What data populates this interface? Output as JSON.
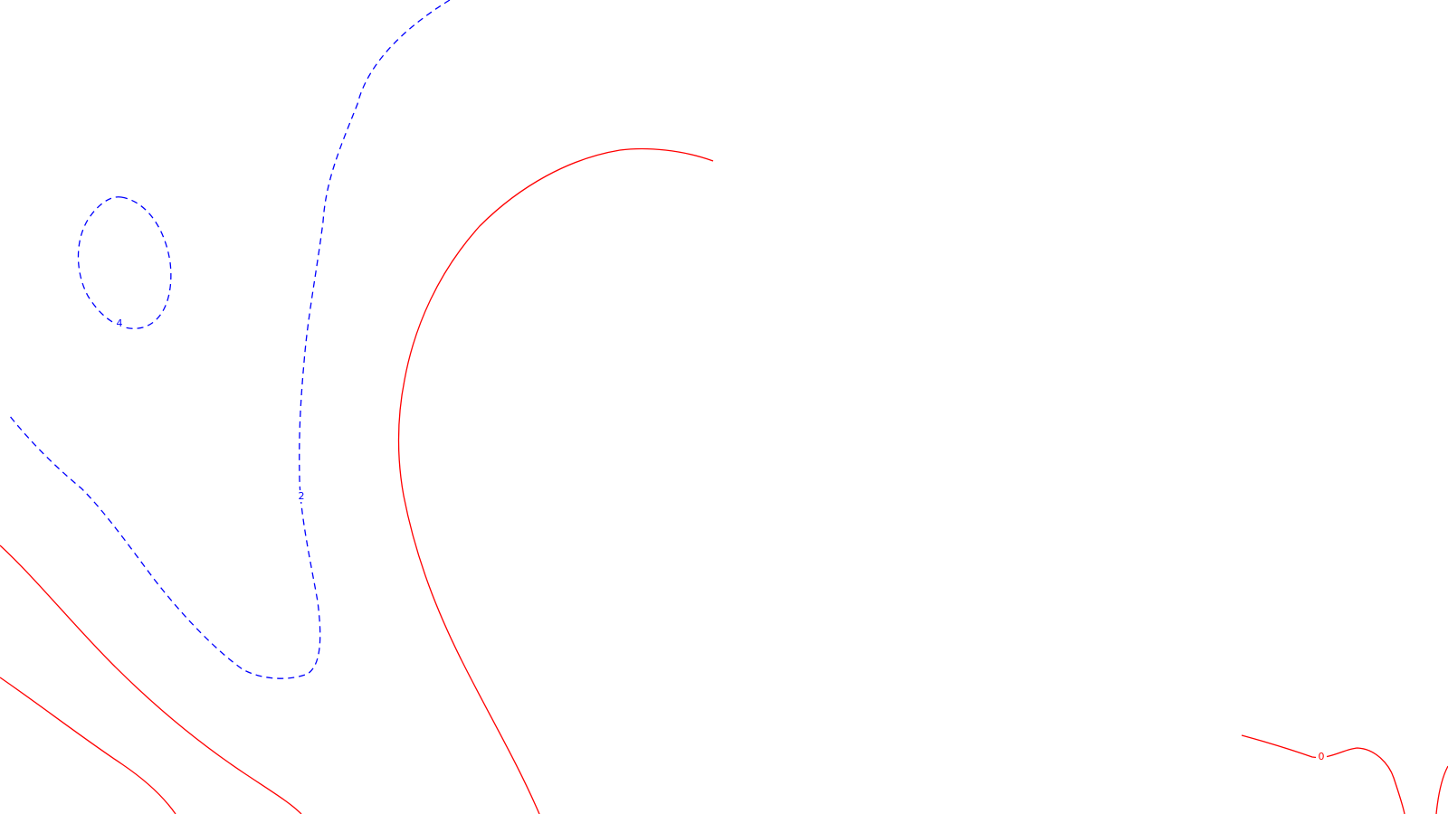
{
  "colors": {
    "background": "#ffffff",
    "negative_contour": "#0000ff",
    "zero_contour": "#ff0000"
  },
  "contours": {
    "label_4": "4",
    "label_2": "2",
    "label_0": "0"
  }
}
